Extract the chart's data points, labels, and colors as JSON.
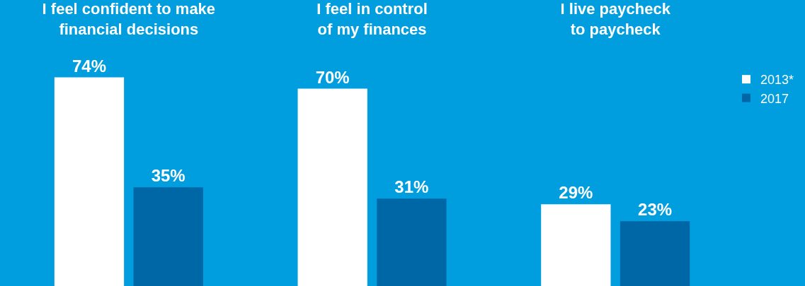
{
  "chart_data": {
    "type": "bar",
    "categories": [
      "I feel confident to make\nfinancial decisions",
      "I feel in control\nof my finances",
      "I live paycheck\nto paycheck"
    ],
    "series": [
      {
        "name": "2013*",
        "color": "#ffffff",
        "values": [
          74,
          70,
          29
        ],
        "value_labels": [
          "74%",
          "70%",
          "29%"
        ]
      },
      {
        "name": "2017",
        "color": "#0067a6",
        "values": [
          35,
          31,
          23
        ],
        "value_labels": [
          "35%",
          "31%",
          "23%"
        ]
      }
    ],
    "legend": "top right",
    "grid": false,
    "tick_labels": "x"
  }
}
